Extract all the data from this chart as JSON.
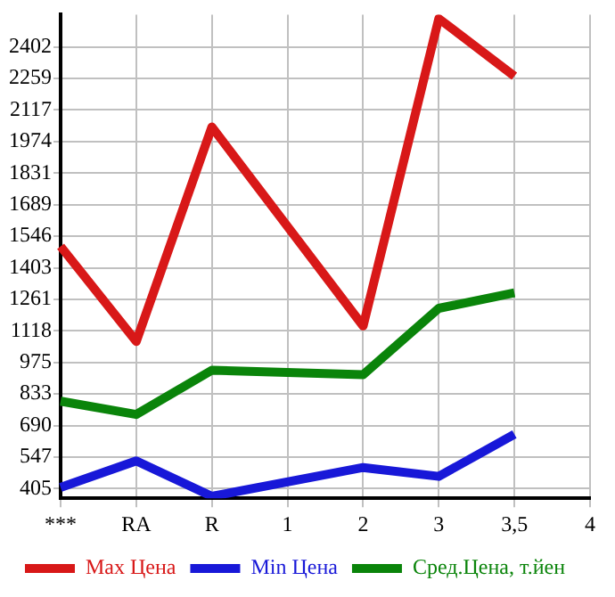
{
  "chart_data": {
    "type": "line",
    "categories": [
      "***",
      "RA",
      "R",
      "1",
      "2",
      "3",
      "3,5",
      "4"
    ],
    "series": [
      {
        "name": "Max Цена",
        "color": "#d81818",
        "values": [
          1500,
          1070,
          2040,
          null,
          1140,
          2530,
          2270,
          null
        ]
      },
      {
        "name": "Min Цена",
        "color": "#1818d8",
        "values": [
          410,
          530,
          370,
          null,
          500,
          460,
          650,
          null
        ]
      },
      {
        "name": "Сред.Цена, т.йен",
        "color": "#0a840a",
        "values": [
          800,
          740,
          940,
          null,
          920,
          1220,
          1290,
          null
        ]
      }
    ],
    "ylim": [
      361,
      2548
    ],
    "yticks": [
      405,
      547,
      690,
      833,
      975,
      1118,
      1261,
      1403,
      1546,
      1689,
      1831,
      1974,
      2117,
      2259,
      2402
    ],
    "grid": true,
    "legend": "bottom",
    "marker": "none",
    "line_style": "solid"
  }
}
